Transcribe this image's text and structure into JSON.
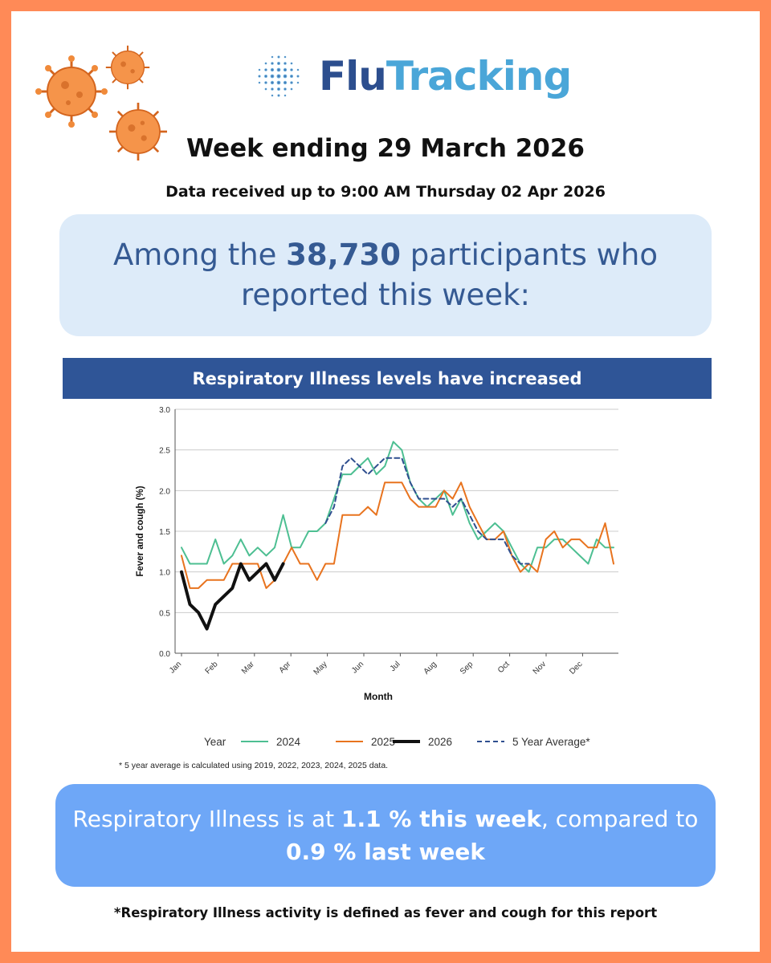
{
  "brand": {
    "logo_part1": "Flu",
    "logo_part2": "Tracking"
  },
  "header": {
    "week_title": "Week ending 29 March 2026",
    "data_received": "Data received up to 9:00 AM Thursday 02 Apr 2026"
  },
  "participants": {
    "prefix": "Among the ",
    "count": "38,730",
    "suffix": " participants who reported this week:"
  },
  "banner": {
    "text": "Respiratory Illness levels have increased"
  },
  "chart_footnote": "* 5 year average is calculated using 2019, 2022, 2023, 2024, 2025 data.",
  "summary": {
    "part1": "Respiratory Illness is at ",
    "bold1": "1.1 % this week",
    "part2": ", compared to ",
    "bold2": "0.9 % last week"
  },
  "definition": "*Respiratory Illness activity is defined as fever and cough for this report",
  "colors": {
    "accent_orange": "#ff8a57",
    "navy": "#2f5597",
    "light_blue_box": "#ddebf9",
    "summary_blue": "#6ea7f7"
  },
  "chart_data": {
    "type": "line",
    "xlabel": "Month",
    "ylabel": "Fever and cough (%)",
    "ylim": [
      0,
      3.0
    ],
    "yticks": [
      "0.0",
      "0.5",
      "1.0",
      "1.5",
      "2.0",
      "2.5",
      "3.0"
    ],
    "xticks": [
      "Jan",
      "Feb",
      "Mar",
      "Apr",
      "May",
      "Jun",
      "Jul",
      "Aug",
      "Sep",
      "Oct",
      "Nov",
      "Dec"
    ],
    "grid": "horizontal",
    "legend_title": "Year",
    "legend_placement": "bottom",
    "series": [
      {
        "name": "2024",
        "color": "#4dbf92",
        "dash": false,
        "width": 2,
        "values": [
          1.3,
          1.1,
          1.1,
          1.1,
          1.4,
          1.1,
          1.2,
          1.4,
          1.2,
          1.3,
          1.2,
          1.3,
          1.7,
          1.3,
          1.3,
          1.5,
          1.5,
          1.6,
          1.9,
          2.2,
          2.2,
          2.3,
          2.4,
          2.2,
          2.3,
          2.6,
          2.5,
          2.1,
          1.9,
          1.8,
          1.9,
          2.0,
          1.7,
          1.9,
          1.6,
          1.4,
          1.5,
          1.6,
          1.5,
          1.3,
          1.1,
          1.0,
          1.3,
          1.3,
          1.4,
          1.4,
          1.3,
          1.2,
          1.1,
          1.4,
          1.3,
          1.3
        ]
      },
      {
        "name": "2025",
        "color": "#e8731e",
        "dash": false,
        "width": 2,
        "values": [
          1.2,
          0.8,
          0.8,
          0.9,
          0.9,
          0.9,
          1.1,
          1.1,
          1.1,
          1.1,
          0.8,
          0.9,
          1.1,
          1.3,
          1.1,
          1.1,
          0.9,
          1.1,
          1.1,
          1.7,
          1.7,
          1.7,
          1.8,
          1.7,
          2.1,
          2.1,
          2.1,
          1.9,
          1.8,
          1.8,
          1.8,
          2.0,
          1.9,
          2.1,
          1.8,
          1.6,
          1.4,
          1.4,
          1.5,
          1.2,
          1.0,
          1.1,
          1.0,
          1.4,
          1.5,
          1.3,
          1.4,
          1.4,
          1.3,
          1.3,
          1.6,
          1.1
        ]
      },
      {
        "name": "2026",
        "color": "#111111",
        "dash": false,
        "width": 4,
        "values": [
          1.0,
          0.6,
          0.5,
          0.3,
          0.6,
          0.7,
          0.8,
          1.1,
          0.9,
          1.0,
          1.1,
          0.9,
          1.1
        ]
      },
      {
        "name": "5 Year Average*",
        "color": "#2f4f8f",
        "dash": true,
        "width": 2,
        "values": [
          null,
          null,
          null,
          null,
          null,
          null,
          null,
          null,
          null,
          null,
          null,
          null,
          null,
          null,
          null,
          null,
          null,
          1.6,
          1.8,
          2.3,
          2.4,
          2.3,
          2.2,
          2.3,
          2.4,
          2.4,
          2.4,
          2.1,
          1.9,
          1.9,
          1.9,
          1.9,
          1.8,
          1.9,
          1.7,
          1.5,
          1.4,
          1.4,
          1.4,
          1.2,
          1.1,
          1.1,
          null,
          null,
          null,
          null,
          null,
          null,
          null,
          null,
          null,
          null
        ]
      }
    ]
  }
}
